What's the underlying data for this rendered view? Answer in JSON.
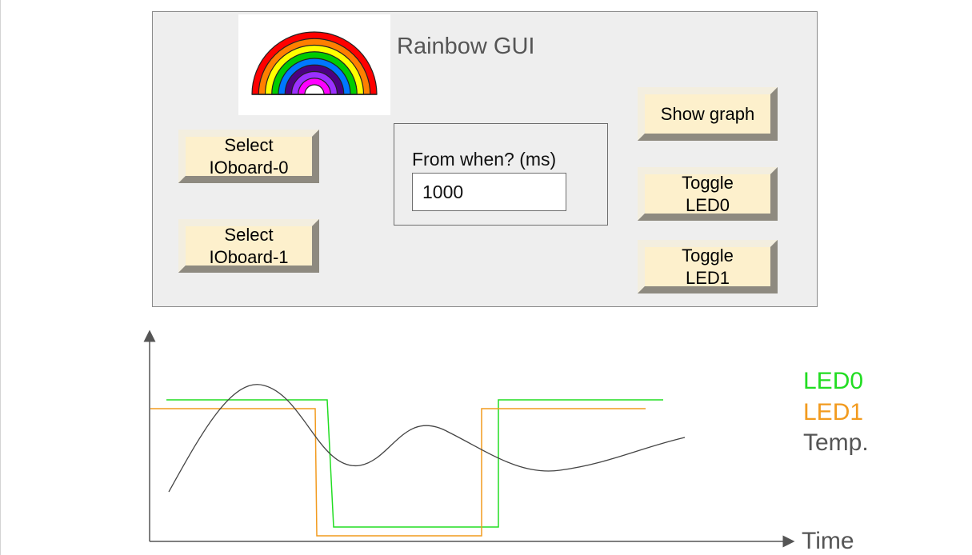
{
  "app": {
    "title": "Rainbow GUI"
  },
  "buttons": {
    "select_ioboard_0": "Select\nIOboard-0",
    "select_ioboard_1": "Select\nIOboard-1",
    "show_graph": "Show graph",
    "toggle_led0": "Toggle\nLED0",
    "toggle_led1": "Toggle\nLED1"
  },
  "from_when": {
    "label": "From when? (ms)",
    "value": "1000"
  },
  "graph": {
    "x_axis_label": "Time",
    "legend": [
      {
        "name": "LED0",
        "color": "#22dd22"
      },
      {
        "name": "LED1",
        "color": "#f29b1f"
      },
      {
        "name": "Temp.",
        "color": "#555555"
      }
    ]
  },
  "colors": {
    "rainbow": [
      "#ff0000",
      "#ff7f00",
      "#ffff00",
      "#00cc00",
      "#0077ff",
      "#4b0082",
      "#9b30ff",
      "#ff00ff"
    ],
    "button_face": "#fdf0cc",
    "window_bg": "#eeeeee"
  }
}
